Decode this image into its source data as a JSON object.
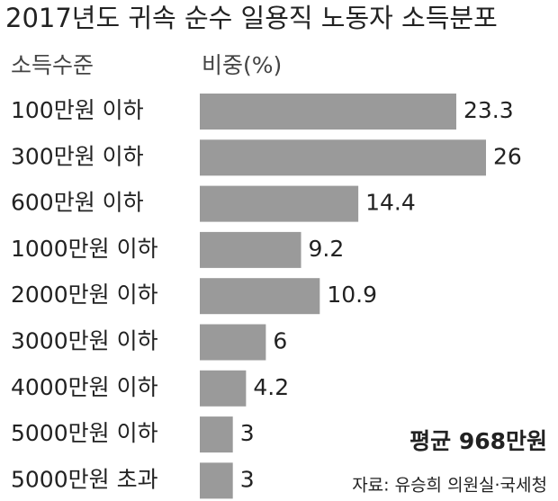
{
  "chart_data": {
    "type": "bar",
    "orientation": "horizontal",
    "title": "2017년도 귀속 순수 일용직 노동자 소득분포",
    "category_label": "소득수준",
    "value_label": "비중(%)",
    "categories": [
      "100만원 이하",
      "300만원 이하",
      "600만원 이하",
      "1000만원 이하",
      "2000만원 이하",
      "3000만원 이하",
      "4000만원 이하",
      "5000만원 이하",
      "5000만원 초과"
    ],
    "values": [
      23.3,
      26,
      14.4,
      9.2,
      10.9,
      6,
      4.2,
      3,
      3
    ],
    "color": "#9a9a9a",
    "annotation": "평균 968만원",
    "source": "자료: 유승희 의원실·국세청"
  }
}
